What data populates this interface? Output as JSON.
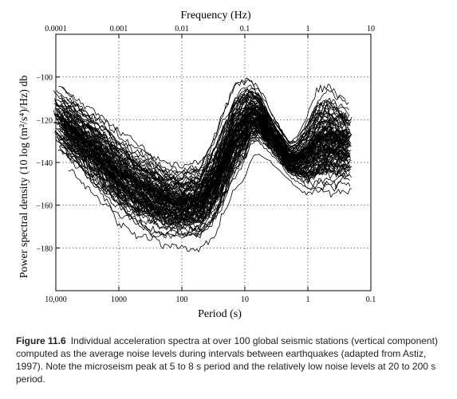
{
  "chart_data": {
    "type": "line",
    "top_axis_label": "Frequency (Hz)",
    "bottom_axis_label": "Period (s)",
    "ylabel": "Power spectral density (10 log (m²/s⁴)/Hz) db",
    "x_scale": "log",
    "xlim_frequency_hz": [
      0.0001,
      10
    ],
    "top_ticks": [
      {
        "value": 0.0001,
        "label": "0.0001"
      },
      {
        "value": 0.001,
        "label": "0.001"
      },
      {
        "value": 0.01,
        "label": "0.01"
      },
      {
        "value": 0.1,
        "label": "0.1"
      },
      {
        "value": 1,
        "label": "1"
      },
      {
        "value": 10,
        "label": "10"
      }
    ],
    "bottom_ticks": [
      {
        "period": 10000,
        "label": "10,000"
      },
      {
        "period": 1000,
        "label": "1000"
      },
      {
        "period": 100,
        "label": "100"
      },
      {
        "period": 10,
        "label": "10"
      },
      {
        "period": 1,
        "label": "1"
      },
      {
        "period": 0.1,
        "label": "0.1"
      }
    ],
    "ylim": [
      -200,
      -80
    ],
    "y_ticks": [
      {
        "value": -100,
        "label": "−100"
      },
      {
        "value": -120,
        "label": "−120"
      },
      {
        "value": -140,
        "label": "−140"
      },
      {
        "value": -160,
        "label": "−160"
      },
      {
        "value": -180,
        "label": "−180"
      }
    ],
    "grid": "dotted",
    "series_count": 110,
    "line_color": "#000000",
    "noise_envelope": {
      "period_s": [
        11000,
        5000,
        2000,
        1000,
        500,
        200,
        100,
        50,
        30,
        20,
        15,
        10,
        8,
        6,
        5,
        4,
        3,
        2,
        1.5,
        1,
        0.7,
        0.5,
        0.3,
        0.2
      ],
      "lower_db": [
        -140,
        -150,
        -162,
        -172,
        -178,
        -183,
        -184,
        -184,
        -178,
        -168,
        -158,
        -150,
        -140,
        -136,
        -138,
        -140,
        -143,
        -150,
        -153,
        -160,
        -162,
        -162,
        -160,
        -158
      ],
      "upper_db": [
        -95,
        -102,
        -110,
        -118,
        -125,
        -132,
        -135,
        -130,
        -118,
        -106,
        -96,
        -92,
        -95,
        -100,
        -105,
        -112,
        -118,
        -126,
        -124,
        -110,
        -98,
        -95,
        -100,
        -105
      ]
    }
  },
  "caption": {
    "label": "Figure 11.6",
    "text": "Individual acceleration spectra at over 100 global seismic stations (vertical component) computed as the average noise levels during intervals between earthquakes (adapted from Astiz, 1997). Note the microseism peak at 5 to 8 s period and the relatively low noise levels at 20 to 200 s period."
  }
}
